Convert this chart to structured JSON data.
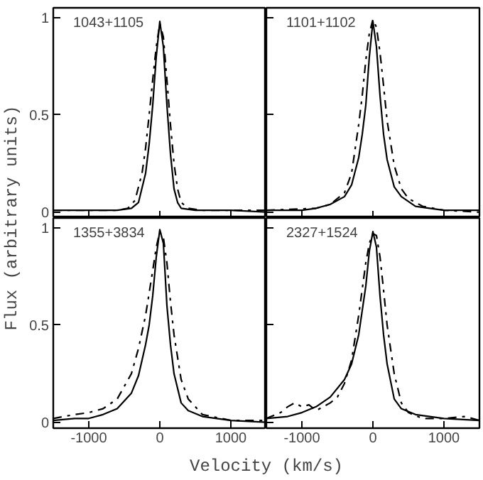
{
  "chart_data": [
    {
      "type": "line",
      "ylabel": "Flux (arbitrary units)",
      "annotations": [
        "1043+1105"
      ],
      "xlim": [
        -1500,
        1500
      ],
      "ylim": [
        -0.03,
        1.05
      ],
      "xticks": [
        -1000,
        0,
        1000
      ],
      "yticks": [
        0,
        0.5,
        1
      ],
      "tick_labels": "y",
      "series": [
        {
          "color": "#000000",
          "line_style": "solid",
          "x": [
            -1500,
            -1000,
            -600,
            -400,
            -300,
            -200,
            -150,
            -100,
            -50,
            0,
            50,
            100,
            150,
            200,
            250,
            300,
            500,
            1000,
            1500
          ],
          "values": [
            0.01,
            0.01,
            0.01,
            0.02,
            0.05,
            0.2,
            0.35,
            0.55,
            0.8,
            0.98,
            0.85,
            0.55,
            0.3,
            0.12,
            0.05,
            0.02,
            0.01,
            0.01,
            0.0
          ]
        },
        {
          "color": "#000000",
          "line_style": "dashdot",
          "x": [
            -1500,
            -600,
            -450,
            -350,
            -250,
            -200,
            -150,
            -100,
            -50,
            0,
            50,
            100,
            150,
            200,
            250,
            300,
            400,
            600,
            1500
          ],
          "values": [
            0.01,
            0.01,
            0.02,
            0.06,
            0.2,
            0.33,
            0.5,
            0.68,
            0.85,
            0.97,
            0.9,
            0.68,
            0.45,
            0.25,
            0.12,
            0.05,
            0.02,
            0.01,
            0.01
          ]
        }
      ]
    },
    {
      "type": "line",
      "annotations": [
        "1101+1102"
      ],
      "xlim": [
        -1500,
        1500
      ],
      "ylim": [
        -0.03,
        1.05
      ],
      "xticks": [
        -1000,
        0,
        1000
      ],
      "yticks": [
        0,
        0.5,
        1
      ],
      "tick_labels": false,
      "series": [
        {
          "color": "#000000",
          "line_style": "solid",
          "x": [
            -1500,
            -1000,
            -800,
            -600,
            -400,
            -300,
            -200,
            -150,
            -100,
            -50,
            0,
            50,
            100,
            150,
            200,
            300,
            400,
            600,
            800,
            1000,
            1500
          ],
          "values": [
            0.01,
            0.01,
            0.02,
            0.04,
            0.08,
            0.14,
            0.28,
            0.4,
            0.55,
            0.8,
            0.98,
            0.85,
            0.6,
            0.4,
            0.27,
            0.13,
            0.08,
            0.03,
            0.02,
            0.01,
            0.01
          ]
        },
        {
          "color": "#000000",
          "line_style": "dashdot",
          "x": [
            -1500,
            -800,
            -600,
            -400,
            -300,
            -200,
            -150,
            -100,
            -50,
            0,
            50,
            100,
            150,
            200,
            300,
            400,
            500,
            700,
            1000,
            1500
          ],
          "values": [
            0.01,
            0.02,
            0.04,
            0.1,
            0.2,
            0.45,
            0.6,
            0.78,
            0.92,
            0.99,
            0.95,
            0.82,
            0.65,
            0.47,
            0.24,
            0.12,
            0.07,
            0.03,
            0.01,
            0.0
          ]
        }
      ]
    },
    {
      "type": "line",
      "xlabel": "Velocity (km/s)",
      "annotations": [
        "1355+3834"
      ],
      "xlim": [
        -1500,
        1500
      ],
      "ylim": [
        -0.03,
        1.05
      ],
      "xticks": [
        -1000,
        0,
        1000
      ],
      "yticks": [
        0,
        0.5,
        1
      ],
      "series": [
        {
          "color": "#000000",
          "line_style": "solid",
          "x": [
            -1500,
            -1200,
            -1000,
            -800,
            -600,
            -400,
            -300,
            -200,
            -150,
            -100,
            -50,
            0,
            50,
            100,
            150,
            200,
            300,
            400,
            600,
            1000,
            1500
          ],
          "values": [
            0.01,
            0.02,
            0.02,
            0.04,
            0.07,
            0.15,
            0.24,
            0.4,
            0.5,
            0.65,
            0.85,
            0.99,
            0.92,
            0.6,
            0.4,
            0.25,
            0.1,
            0.06,
            0.03,
            0.01,
            0.0
          ]
        },
        {
          "color": "#000000",
          "line_style": "dashdot",
          "x": [
            -1500,
            -1200,
            -1000,
            -800,
            -600,
            -400,
            -300,
            -200,
            -100,
            -50,
            0,
            50,
            100,
            150,
            200,
            300,
            400,
            600,
            1000,
            1500
          ],
          "values": [
            0.02,
            0.04,
            0.05,
            0.07,
            0.12,
            0.25,
            0.38,
            0.55,
            0.78,
            0.9,
            0.98,
            0.95,
            0.82,
            0.62,
            0.45,
            0.22,
            0.12,
            0.04,
            0.01,
            0.01
          ]
        }
      ]
    },
    {
      "type": "line",
      "annotations": [
        "2327+1524"
      ],
      "xlim": [
        -1500,
        1500
      ],
      "ylim": [
        -0.03,
        1.05
      ],
      "xticks": [
        -1000,
        0,
        1000
      ],
      "yticks": [
        0,
        0.5,
        1
      ],
      "tick_labels": "x",
      "series": [
        {
          "color": "#000000",
          "line_style": "solid",
          "x": [
            -1500,
            -1200,
            -1000,
            -800,
            -600,
            -400,
            -300,
            -200,
            -100,
            -50,
            0,
            50,
            100,
            150,
            200,
            300,
            400,
            600,
            800,
            1000,
            1500
          ],
          "values": [
            0.02,
            0.03,
            0.05,
            0.08,
            0.13,
            0.22,
            0.3,
            0.45,
            0.7,
            0.88,
            0.98,
            0.9,
            0.65,
            0.45,
            0.3,
            0.12,
            0.07,
            0.04,
            0.03,
            0.02,
            0.01
          ]
        },
        {
          "color": "#000000",
          "line_style": "dashdot",
          "x": [
            -1500,
            -1300,
            -1200,
            -1100,
            -1000,
            -900,
            -800,
            -600,
            -500,
            -400,
            -300,
            -200,
            -100,
            -50,
            0,
            50,
            100,
            150,
            200,
            300,
            400,
            500,
            700,
            1000,
            1300,
            1500
          ],
          "values": [
            0.02,
            0.05,
            0.08,
            0.1,
            0.08,
            0.09,
            0.06,
            0.1,
            0.13,
            0.2,
            0.32,
            0.55,
            0.82,
            0.92,
            0.97,
            0.96,
            0.85,
            0.68,
            0.5,
            0.25,
            0.1,
            0.05,
            0.02,
            0.02,
            0.03,
            0.01
          ]
        }
      ]
    }
  ]
}
